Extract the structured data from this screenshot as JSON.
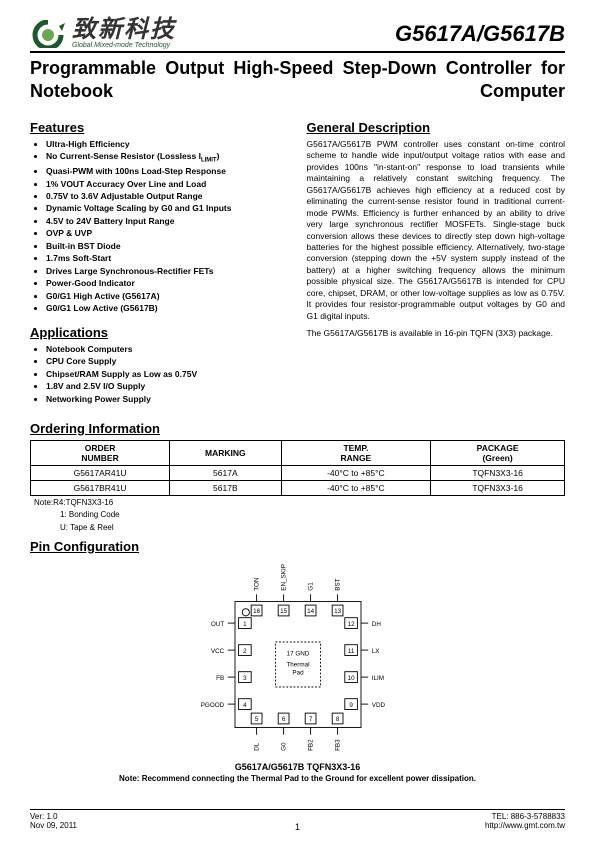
{
  "header": {
    "logo_cn": "致新科技",
    "logo_sub": "Global Mixed-mode Technology",
    "part": "G5617A/G5617B",
    "logo_colors": {
      "outer": "#1a5a2a",
      "inner": "#6aa84f"
    }
  },
  "title": "Programmable Output High-Speed Step-Down Controller for Notebook Computer",
  "features": {
    "heading": "Features",
    "items": [
      "Ultra-High Efficiency",
      "No Current-Sense Resistor (Lossless I<sub>LIMIT</sub>)",
      "Quasi-PWM with 100ns Load-Step Response",
      "1% VOUT Accuracy Over Line and Load",
      "0.75V to 3.6V Adjustable Output Range",
      "Dynamic Voltage Scaling by G0 and G1 Inputs",
      "4.5V to 24V Battery Input Range",
      "OVP & UVP",
      "Built-in BST Diode",
      "1.7ms Soft-Start",
      "Drives Large Synchronous-Rectifier FETs",
      "Power-Good Indicator",
      "G0/G1 High Active (G5617A)",
      "G0/G1 Low Active (G5617B)"
    ]
  },
  "applications": {
    "heading": "Applications",
    "items": [
      "Notebook Computers",
      "CPU Core Supply",
      "Chipset/RAM Supply as Low as 0.75V",
      "1.8V and 2.5V I/O Supply",
      "Networking Power Supply"
    ]
  },
  "description": {
    "heading": "General Description",
    "p1": "G5617A/G5617B PWM controller uses constant on-time control scheme to handle wide input/output voltage ratios with ease and provides 100ns \"in-stant-on\" response to load transients while maintaining a relatively constant switching frequency. The G5617A/G5617B achieves high efficiency at a reduced cost by eliminating the current-sense resistor found in traditional current-mode PWMs. Efficiency is further enhanced by an ability to drive very large synchronous rectifier MOSFETs. Single-stage buck conversion allows these devices to directly step down high-voltage batteries for the highest possible efficiency. Alternatively, two-stage conversion (stepping down the +5V system supply instead of the battery) at a higher switching frequency allows the minimum possible physical size. The G5617A/G5617B is intended for CPU core, chipset, DRAM, or other low-voltage supplies as low as 0.75V. It provides four resistor-programmable output voltages by G0 and G1 digital inputs.",
    "p2": "The G5617A/G5617B is available in 16-pin TQFN (3X3) package."
  },
  "ordering": {
    "heading": "Ordering Information",
    "columns": [
      "ORDER NUMBER",
      "MARKING",
      "TEMP. RANGE",
      "PACKAGE (Green)"
    ],
    "rows": [
      [
        "G5617AR41U",
        "5617A",
        "-40°C to +85°C",
        "TQFN3X3-16"
      ],
      [
        "G5617BR41U",
        "5617B",
        "-40°C to +85°C",
        "TQFN3X3-16"
      ]
    ],
    "notes": [
      "Note:R4:TQFN3X3-16",
      "1: Bonding Code",
      "U: Tape & Reel"
    ]
  },
  "pinconfig": {
    "heading": "Pin Configuration",
    "caption": "G5617A/G5617B TQFN3X3-16",
    "note": "Note: Recommend connecting the Thermal Pad to the Ground for excellent power dissipation.",
    "center": "17 GND",
    "thermal": "Thermal Pad",
    "pins_left": [
      {
        "n": 1,
        "l": "OUT"
      },
      {
        "n": 2,
        "l": "VCC"
      },
      {
        "n": 3,
        "l": "FB"
      },
      {
        "n": 4,
        "l": "PGOOD"
      }
    ],
    "pins_right": [
      {
        "n": 12,
        "l": "DH"
      },
      {
        "n": 11,
        "l": "LX"
      },
      {
        "n": 10,
        "l": "ILIM"
      },
      {
        "n": 9,
        "l": "VDD"
      }
    ],
    "pins_top": [
      {
        "n": 16,
        "l": "TON"
      },
      {
        "n": 15,
        "l": "EN_SKIP"
      },
      {
        "n": 14,
        "l": "G1"
      },
      {
        "n": 13,
        "l": "BST"
      }
    ],
    "pins_bot": [
      {
        "n": 5,
        "l": "DL"
      },
      {
        "n": 6,
        "l": "G0"
      },
      {
        "n": 7,
        "l": "FB2"
      },
      {
        "n": 8,
        "l": "FB3"
      }
    ]
  },
  "footer": {
    "ver": "Ver: 1.0",
    "date": "Nov 09, 2011",
    "tel": "TEL: 886-3-5788833",
    "url": "http://www.gmt.com.tw",
    "page": "1"
  },
  "style": {
    "text_color": "#000000",
    "font_body_pt": 8.5,
    "font_title_pt": 18,
    "font_part_pt": 22,
    "border_color": "#000000"
  }
}
